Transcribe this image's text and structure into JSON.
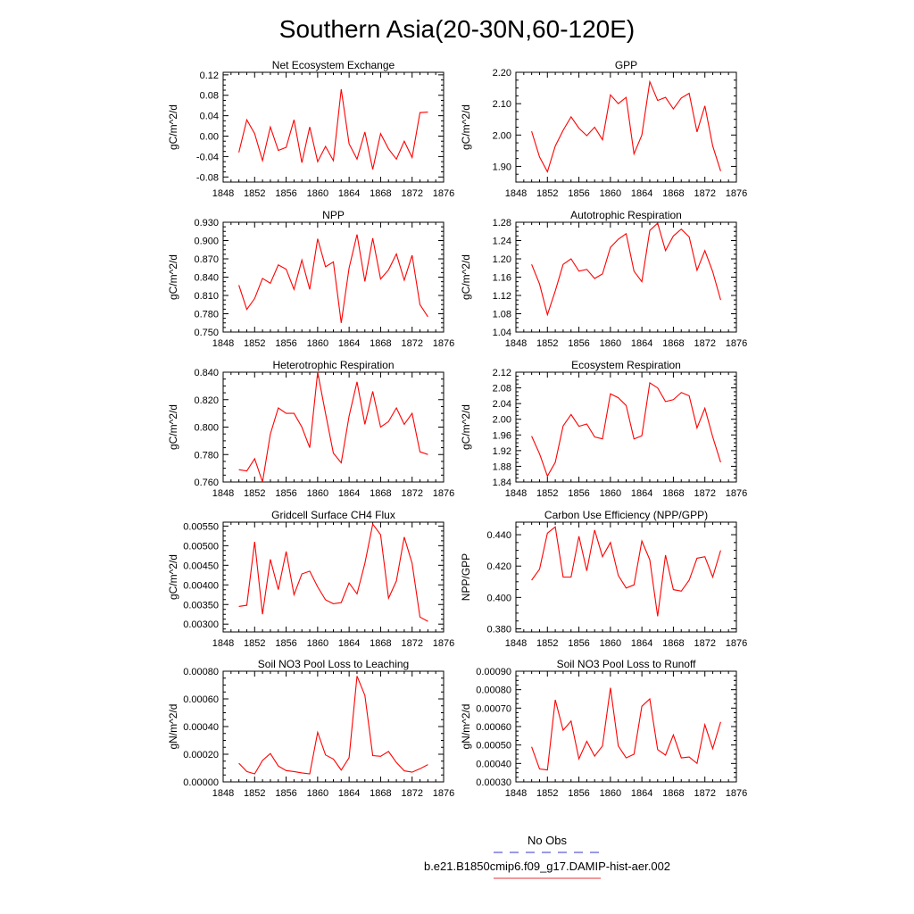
{
  "figure": {
    "title": "Southern Asia(20-30N,60-120E)",
    "legend": {
      "entries": [
        {
          "label": "No Obs",
          "color": "#3333cc",
          "style": "dashed"
        },
        {
          "label": "b.e21.B1850cmip6.f09_g17.DAMIP-hist-aer.002",
          "color": "#e03030",
          "style": "solid"
        }
      ]
    },
    "colors": {
      "series": "#ff0000",
      "axis": "#000000"
    }
  },
  "chart_data": [
    {
      "type": "line",
      "title": "Net Ecosystem Exchange",
      "ylabel": "gC/m^2/d",
      "xlim": [
        1848,
        1876
      ],
      "ylim": [
        -0.09,
        0.125
      ],
      "xticks": [
        "1848",
        "1852",
        "1856",
        "1860",
        "1864",
        "1868",
        "1872",
        "1876"
      ],
      "yticks": [
        "-0.08",
        "-0.04",
        "0.00",
        "0.04",
        "0.08",
        "0.12"
      ],
      "series": [
        {
          "x": [
            1850,
            1851,
            1852,
            1853,
            1854,
            1855,
            1856,
            1857,
            1858,
            1859,
            1860,
            1861,
            1862,
            1863,
            1864,
            1865,
            1866,
            1867,
            1868,
            1869,
            1870,
            1871,
            1872,
            1873,
            1874
          ],
          "values": [
            -0.032,
            0.032,
            0.005,
            -0.048,
            0.018,
            -0.028,
            -0.022,
            0.032,
            -0.052,
            0.018,
            -0.05,
            -0.02,
            -0.048,
            0.092,
            -0.015,
            -0.045,
            0.008,
            -0.065,
            0.005,
            -0.025,
            -0.045,
            -0.01,
            -0.042,
            0.046,
            0.047
          ]
        }
      ]
    },
    {
      "type": "line",
      "title": "GPP",
      "ylabel": "gC/m^2/d",
      "xlim": [
        1848,
        1876
      ],
      "ylim": [
        1.85,
        2.2
      ],
      "xticks": [
        "1848",
        "1852",
        "1856",
        "1860",
        "1864",
        "1868",
        "1872",
        "1876"
      ],
      "yticks": [
        "1.90",
        "2.00",
        "2.10",
        "2.20"
      ],
      "series": [
        {
          "x": [
            1850,
            1851,
            1852,
            1853,
            1854,
            1855,
            1856,
            1857,
            1858,
            1859,
            1860,
            1861,
            1862,
            1863,
            1864,
            1865,
            1866,
            1867,
            1868,
            1869,
            1870,
            1871,
            1872,
            1873,
            1874
          ],
          "values": [
            2.012,
            1.93,
            1.883,
            1.965,
            2.015,
            2.058,
            2.022,
            1.998,
            2.025,
            1.985,
            2.128,
            2.1,
            2.12,
            1.94,
            2.0,
            2.17,
            2.11,
            2.12,
            2.083,
            2.118,
            2.133,
            2.01,
            2.093,
            1.965,
            1.885
          ]
        }
      ]
    },
    {
      "type": "line",
      "title": "NPP",
      "ylabel": "gC/m^2/d",
      "xlim": [
        1848,
        1876
      ],
      "ylim": [
        0.75,
        0.93
      ],
      "xticks": [
        "1848",
        "1852",
        "1856",
        "1860",
        "1864",
        "1868",
        "1872",
        "1876"
      ],
      "yticks": [
        "0.750",
        "0.780",
        "0.810",
        "0.840",
        "0.870",
        "0.900",
        "0.930"
      ],
      "series": [
        {
          "x": [
            1850,
            1851,
            1852,
            1853,
            1854,
            1855,
            1856,
            1857,
            1858,
            1859,
            1860,
            1861,
            1862,
            1863,
            1864,
            1865,
            1866,
            1867,
            1868,
            1869,
            1870,
            1871,
            1872,
            1873,
            1874
          ],
          "values": [
            0.827,
            0.787,
            0.805,
            0.838,
            0.83,
            0.86,
            0.853,
            0.82,
            0.868,
            0.82,
            0.903,
            0.857,
            0.865,
            0.765,
            0.855,
            0.91,
            0.833,
            0.904,
            0.837,
            0.852,
            0.878,
            0.835,
            0.876,
            0.795,
            0.775
          ]
        }
      ]
    },
    {
      "type": "line",
      "title": "Autotrophic Respiration",
      "ylabel": "gC/m^2/d",
      "xlim": [
        1848,
        1876
      ],
      "ylim": [
        1.04,
        1.28
      ],
      "xticks": [
        "1848",
        "1852",
        "1856",
        "1860",
        "1864",
        "1868",
        "1872",
        "1876"
      ],
      "yticks": [
        "1.04",
        "1.08",
        "1.12",
        "1.16",
        "1.20",
        "1.24",
        "1.28"
      ],
      "series": [
        {
          "x": [
            1850,
            1851,
            1852,
            1853,
            1854,
            1855,
            1856,
            1857,
            1858,
            1859,
            1860,
            1861,
            1862,
            1863,
            1864,
            1865,
            1866,
            1867,
            1868,
            1869,
            1870,
            1871,
            1872,
            1873,
            1874
          ],
          "values": [
            1.188,
            1.145,
            1.078,
            1.13,
            1.188,
            1.2,
            1.173,
            1.177,
            1.157,
            1.167,
            1.225,
            1.243,
            1.255,
            1.173,
            1.15,
            1.262,
            1.278,
            1.218,
            1.25,
            1.265,
            1.248,
            1.175,
            1.218,
            1.172,
            1.11
          ]
        }
      ]
    },
    {
      "type": "line",
      "title": "Heterotrophic Respiration",
      "ylabel": "gC/m^2/d",
      "xlim": [
        1848,
        1876
      ],
      "ylim": [
        0.76,
        0.84
      ],
      "xticks": [
        "1848",
        "1852",
        "1856",
        "1860",
        "1864",
        "1868",
        "1872",
        "1876"
      ],
      "yticks": [
        "0.760",
        "0.780",
        "0.800",
        "0.820",
        "0.840"
      ],
      "series": [
        {
          "x": [
            1850,
            1851,
            1852,
            1853,
            1854,
            1855,
            1856,
            1857,
            1858,
            1859,
            1860,
            1861,
            1862,
            1863,
            1864,
            1865,
            1866,
            1867,
            1868,
            1869,
            1870,
            1871,
            1872,
            1873,
            1874
          ],
          "values": [
            0.769,
            0.768,
            0.777,
            0.76,
            0.795,
            0.814,
            0.81,
            0.81,
            0.8,
            0.785,
            0.84,
            0.81,
            0.781,
            0.774,
            0.808,
            0.833,
            0.802,
            0.826,
            0.8,
            0.804,
            0.814,
            0.802,
            0.81,
            0.782,
            0.78
          ]
        }
      ]
    },
    {
      "type": "line",
      "title": "Ecosystem Respiration",
      "ylabel": "gC/m^2/d",
      "xlim": [
        1848,
        1876
      ],
      "ylim": [
        1.84,
        2.12
      ],
      "xticks": [
        "1848",
        "1852",
        "1856",
        "1860",
        "1864",
        "1868",
        "1872",
        "1876"
      ],
      "yticks": [
        "1.84",
        "1.88",
        "1.92",
        "1.96",
        "2.00",
        "2.04",
        "2.08",
        "2.12"
      ],
      "series": [
        {
          "x": [
            1850,
            1851,
            1852,
            1853,
            1854,
            1855,
            1856,
            1857,
            1858,
            1859,
            1860,
            1861,
            1862,
            1863,
            1864,
            1865,
            1866,
            1867,
            1868,
            1869,
            1870,
            1871,
            1872,
            1873,
            1874
          ],
          "values": [
            1.957,
            1.912,
            1.855,
            1.89,
            1.983,
            2.012,
            1.982,
            1.988,
            1.955,
            1.95,
            2.065,
            2.055,
            2.035,
            1.95,
            1.958,
            2.093,
            2.08,
            2.045,
            2.05,
            2.068,
            2.06,
            1.978,
            2.028,
            1.955,
            1.89
          ]
        }
      ]
    },
    {
      "type": "line",
      "title": "Gridcell Surface CH4 Flux",
      "ylabel": "gC/m^2/d",
      "xlim": [
        1848,
        1876
      ],
      "ylim": [
        0.0028,
        0.0056
      ],
      "xticks": [
        "1848",
        "1852",
        "1856",
        "1860",
        "1864",
        "1868",
        "1872",
        "1876"
      ],
      "yticks": [
        "0.00300",
        "0.00350",
        "0.00400",
        "0.00450",
        "0.00500",
        "0.00550"
      ],
      "series": [
        {
          "x": [
            1850,
            1851,
            1852,
            1853,
            1854,
            1855,
            1856,
            1857,
            1858,
            1859,
            1860,
            1861,
            1862,
            1863,
            1864,
            1865,
            1866,
            1867,
            1868,
            1869,
            1870,
            1871,
            1872,
            1873,
            1874
          ],
          "values": [
            0.00345,
            0.00348,
            0.0051,
            0.00325,
            0.00465,
            0.00388,
            0.00485,
            0.00375,
            0.00428,
            0.00435,
            0.00395,
            0.00362,
            0.00352,
            0.00355,
            0.00405,
            0.00377,
            0.00455,
            0.00555,
            0.00528,
            0.00366,
            0.0041,
            0.00522,
            0.00455,
            0.00318,
            0.00307
          ]
        }
      ]
    },
    {
      "type": "line",
      "title": "Carbon Use Efficiency (NPP/GPP)",
      "ylabel": "NPP/GPP",
      "xlim": [
        1848,
        1876
      ],
      "ylim": [
        0.378,
        0.448
      ],
      "xticks": [
        "1848",
        "1852",
        "1856",
        "1860",
        "1864",
        "1868",
        "1872",
        "1876"
      ],
      "yticks": [
        "0.380",
        "0.400",
        "0.420",
        "0.440"
      ],
      "series": [
        {
          "x": [
            1850,
            1851,
            1852,
            1853,
            1854,
            1855,
            1856,
            1857,
            1858,
            1859,
            1860,
            1861,
            1862,
            1863,
            1864,
            1865,
            1866,
            1867,
            1868,
            1869,
            1870,
            1871,
            1872,
            1873,
            1874
          ],
          "values": [
            0.411,
            0.418,
            0.441,
            0.445,
            0.413,
            0.413,
            0.439,
            0.417,
            0.443,
            0.426,
            0.435,
            0.414,
            0.406,
            0.408,
            0.436,
            0.424,
            0.388,
            0.427,
            0.405,
            0.404,
            0.411,
            0.425,
            0.426,
            0.413,
            0.43
          ]
        }
      ]
    },
    {
      "type": "line",
      "title": "Soil NO3 Pool Loss to Leaching",
      "ylabel": "gN/m^2/d",
      "xlim": [
        1848,
        1876
      ],
      "ylim": [
        0.0,
        0.0008
      ],
      "xticks": [
        "1848",
        "1852",
        "1856",
        "1860",
        "1864",
        "1868",
        "1872",
        "1876"
      ],
      "yticks": [
        "0.00000",
        "0.00020",
        "0.00040",
        "0.00060",
        "0.00080"
      ],
      "series": [
        {
          "x": [
            1850,
            1851,
            1852,
            1853,
            1854,
            1855,
            1856,
            1857,
            1858,
            1859,
            1860,
            1861,
            1862,
            1863,
            1864,
            1865,
            1866,
            1867,
            1868,
            1869,
            1870,
            1871,
            1872,
            1873,
            1874
          ],
          "values": [
            0.000135,
            7.5e-05,
            5.8e-05,
            0.000155,
            0.000205,
            0.000115,
            8.2e-05,
            7.5e-05,
            6.5e-05,
            5.8e-05,
            0.000358,
            0.000195,
            0.000165,
            8.5e-05,
            0.000175,
            0.000765,
            0.000625,
            0.00019,
            0.000185,
            0.00022,
            0.00014,
            8e-05,
            7e-05,
            9.5e-05,
            0.000125
          ]
        }
      ]
    },
    {
      "type": "line",
      "title": "Soil NO3 Pool Loss to Runoff",
      "ylabel": "gN/m^2/d",
      "xlim": [
        1848,
        1876
      ],
      "ylim": [
        0.0003,
        0.0009
      ],
      "xticks": [
        "1848",
        "1852",
        "1856",
        "1860",
        "1864",
        "1868",
        "1872",
        "1876"
      ],
      "yticks": [
        "0.00030",
        "0.00040",
        "0.00050",
        "0.00060",
        "0.00070",
        "0.00080",
        "0.00090"
      ],
      "series": [
        {
          "x": [
            1850,
            1851,
            1852,
            1853,
            1854,
            1855,
            1856,
            1857,
            1858,
            1859,
            1860,
            1861,
            1862,
            1863,
            1864,
            1865,
            1866,
            1867,
            1868,
            1869,
            1870,
            1871,
            1872,
            1873,
            1874
          ],
          "values": [
            0.00049,
            0.00037,
            0.000365,
            0.000745,
            0.00058,
            0.00063,
            0.000425,
            0.00052,
            0.00044,
            0.000495,
            0.00081,
            0.000495,
            0.00043,
            0.00045,
            0.00071,
            0.00075,
            0.000475,
            0.000445,
            0.000555,
            0.00043,
            0.000435,
            0.0004,
            0.00061,
            0.00048,
            0.000625
          ]
        }
      ]
    }
  ]
}
